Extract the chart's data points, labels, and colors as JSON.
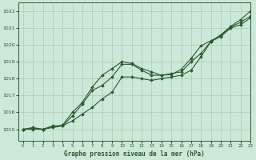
{
  "title": "Graphe pression niveau de la mer (hPa)",
  "bg_color": "#cce8d8",
  "grid_color": "#aaccb8",
  "line_color": "#2d5a2d",
  "marker_color": "#2d5a2d",
  "xlim": [
    -0.5,
    23
  ],
  "ylim": [
    1014.3,
    1022.5
  ],
  "yticks": [
    1015,
    1016,
    1017,
    1018,
    1019,
    1020,
    1021,
    1022
  ],
  "xticks": [
    0,
    1,
    2,
    3,
    4,
    5,
    6,
    7,
    8,
    9,
    10,
    11,
    12,
    13,
    14,
    15,
    16,
    17,
    18,
    19,
    20,
    21,
    22,
    23
  ],
  "series": [
    [
      1015.0,
      1015.1,
      1015.0,
      1015.1,
      1015.2,
      1015.5,
      1015.9,
      1016.3,
      1016.8,
      1017.2,
      1018.1,
      1018.1,
      1018.0,
      1017.9,
      1018.0,
      1018.1,
      1018.2,
      1018.5,
      1019.3,
      1020.2,
      1020.6,
      1021.1,
      1021.5,
      1022.0
    ],
    [
      1015.0,
      1015.0,
      1015.0,
      1015.2,
      1015.2,
      1015.8,
      1016.5,
      1017.3,
      1017.6,
      1018.1,
      1018.85,
      1018.85,
      1018.5,
      1018.2,
      1018.2,
      1018.3,
      1018.4,
      1019.0,
      1019.5,
      1020.2,
      1020.5,
      1021.0,
      1021.2,
      1021.6
    ],
    [
      1015.0,
      1015.05,
      1015.0,
      1015.15,
      1015.25,
      1016.0,
      1016.6,
      1017.5,
      1018.2,
      1018.6,
      1019.0,
      1018.9,
      1018.6,
      1018.4,
      1018.2,
      1018.25,
      1018.55,
      1019.2,
      1019.95,
      1020.25,
      1020.55,
      1021.05,
      1021.35,
      1021.7
    ]
  ]
}
